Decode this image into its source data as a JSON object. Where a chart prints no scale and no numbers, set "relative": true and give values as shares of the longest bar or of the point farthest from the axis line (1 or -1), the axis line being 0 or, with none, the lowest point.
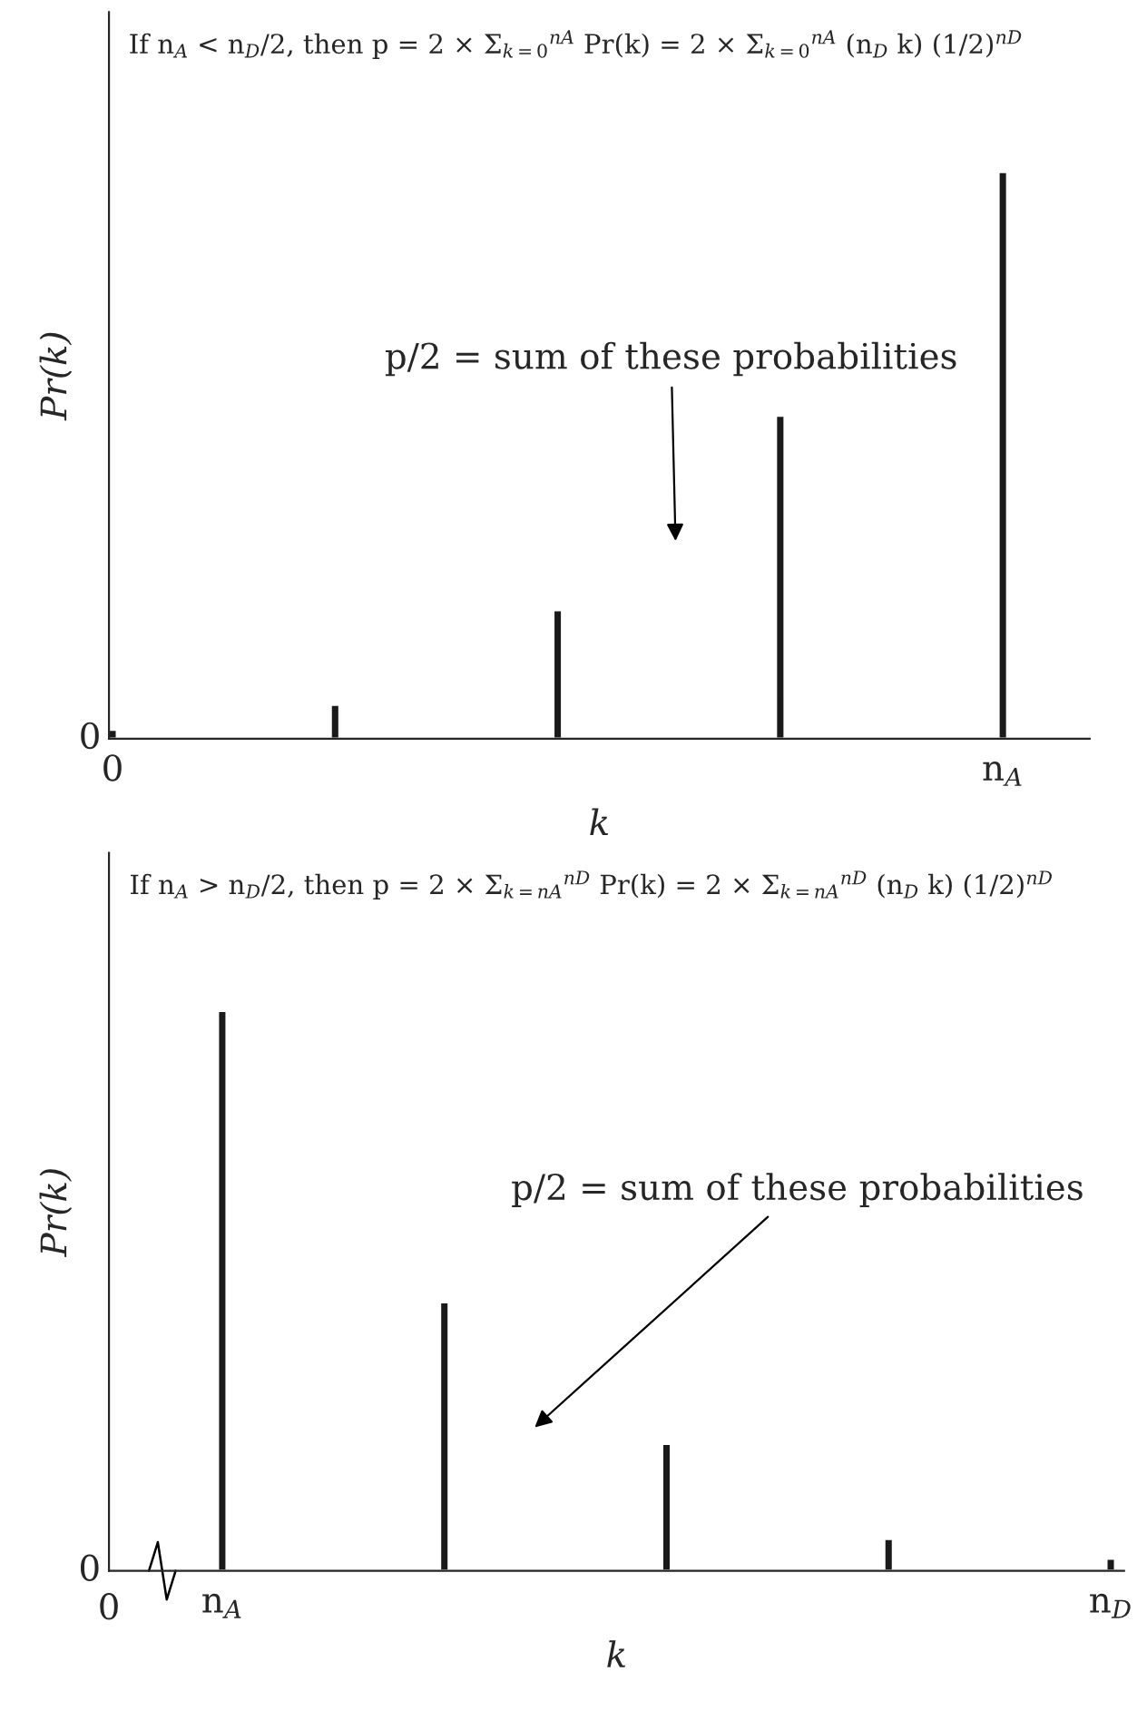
{
  "chart_data": [
    {
      "type": "bar",
      "relative": true,
      "title": "If n$_{A}$ < n$_{D}$/2, then p = 2 × Σ$_{k=0}$$^{nA}$ Pr(k) = 2 × Σ$_{k=0}$$^{nA}$ (n$_{D}$ k) (1/2)$^{nD}$",
      "xlabel": "k",
      "ylabel": "Pr(k)",
      "categories": [
        "0",
        null,
        null,
        null,
        "n$_{A}$"
      ],
      "values": [
        0.016,
        0.06,
        0.227,
        0.57,
        1.0
      ],
      "color": "#1a1a1a",
      "annotations": [
        "0",
        "p/2 = sum of these probabilities"
      ]
    },
    {
      "type": "bar",
      "relative": true,
      "title": "If n$_{A}$ > n$_{D}$/2, then p = 2 × Σ$_{k=nA}$$^{nD}$ Pr(k) = 2 × Σ$_{k=nA}$$^{nD}$ (n$_{D}$ k) (1/2)$^{nD}$",
      "xlabel": "k",
      "ylabel": "Pr(k)",
      "categories": [
        "n$_{A}$",
        null,
        null,
        null,
        "n$_{D}$"
      ],
      "values": [
        1.0,
        0.48,
        0.227,
        0.057,
        0.022
      ],
      "color": "#1a1a1a",
      "annotations": [
        "0",
        "0",
        "p/2 = sum of these probabilities"
      ]
    }
  ]
}
